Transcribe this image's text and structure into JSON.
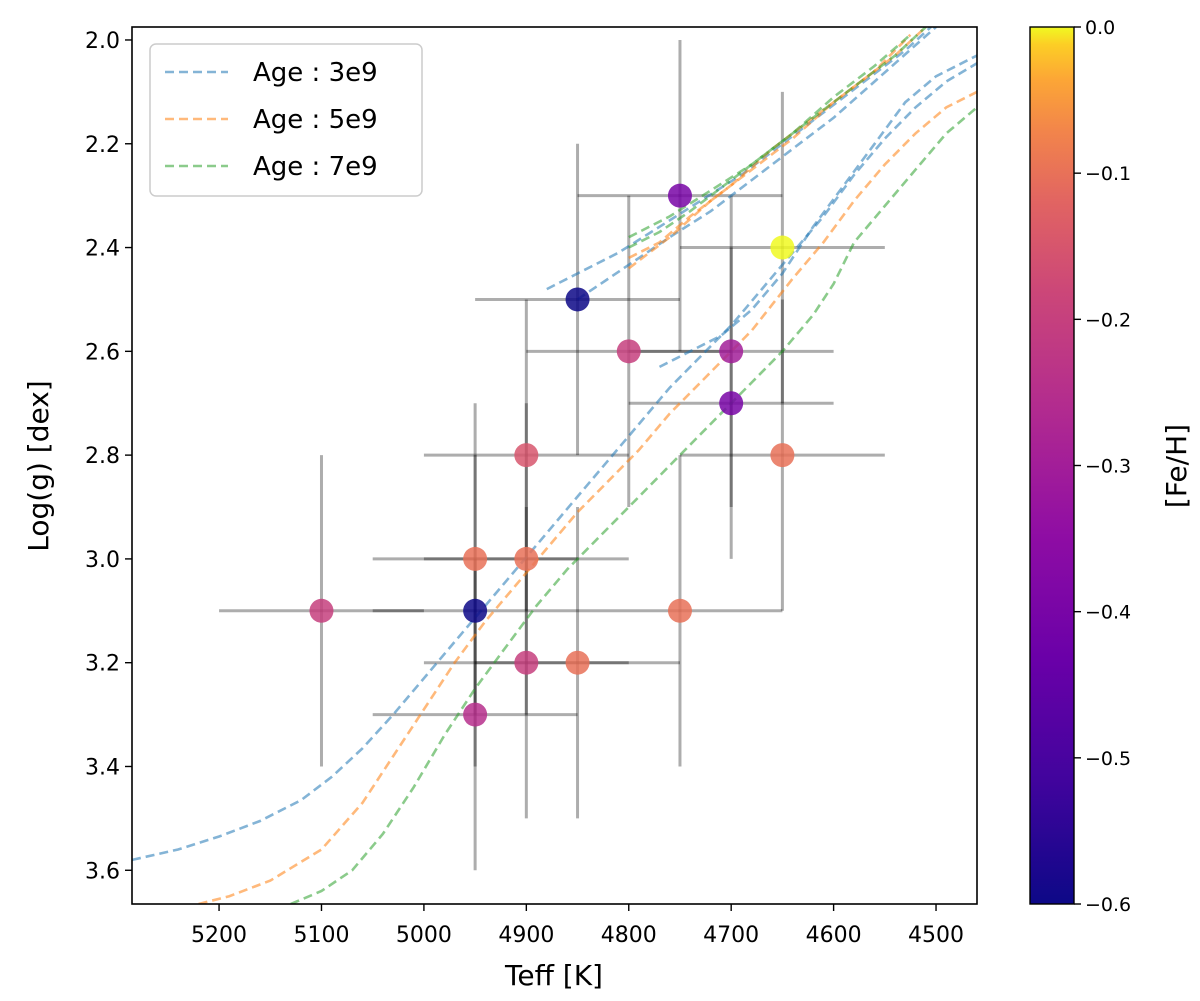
{
  "chart_data": {
    "type": "scatter",
    "xlabel": "Teff [K]",
    "ylabel": "Log(g) [dex]",
    "xlim": [
      5285,
      4460
    ],
    "ylim": [
      3.665,
      1.975
    ],
    "x_ticks": [
      5200,
      5100,
      5000,
      4900,
      4800,
      4700,
      4600,
      4500
    ],
    "y_ticks": [
      2.0,
      2.2,
      2.4,
      2.6,
      2.8,
      3.0,
      3.2,
      3.4,
      3.6
    ],
    "x_tick_labels": [
      "5200",
      "5100",
      "5000",
      "4900",
      "4800",
      "4700",
      "4600",
      "4500"
    ],
    "y_tick_labels": [
      "2.0",
      "2.2",
      "2.4",
      "2.6",
      "2.8",
      "3.0",
      "3.2",
      "3.4",
      "3.6"
    ],
    "colorbar": {
      "label": "[Fe/H]",
      "range": [
        -0.6,
        0.0
      ],
      "ticks": [
        0.0,
        -0.1,
        -0.2,
        -0.3,
        -0.4,
        -0.5,
        -0.6
      ],
      "tick_labels": [
        "0.0",
        "−0.1",
        "−0.2",
        "−0.3",
        "−0.4",
        "−0.5",
        "−0.6"
      ],
      "colormap": "plasma"
    },
    "points": [
      {
        "teff": 4750,
        "logg": 2.3,
        "feh": -0.4,
        "teff_err": 100,
        "logg_err": 0.3
      },
      {
        "teff": 4650,
        "logg": 2.4,
        "feh": 0.0,
        "teff_err": 100,
        "logg_err": 0.3
      },
      {
        "teff": 4850,
        "logg": 2.5,
        "feh": -0.6,
        "teff_err": 100,
        "logg_err": 0.3
      },
      {
        "teff": 4800,
        "logg": 2.6,
        "feh": -0.2,
        "teff_err": 100,
        "logg_err": 0.3
      },
      {
        "teff": 4700,
        "logg": 2.6,
        "feh": -0.3,
        "teff_err": 100,
        "logg_err": 0.3
      },
      {
        "teff": 4700,
        "logg": 2.7,
        "feh": -0.4,
        "teff_err": 100,
        "logg_err": 0.3
      },
      {
        "teff": 4900,
        "logg": 2.8,
        "feh": -0.15,
        "teff_err": 100,
        "logg_err": 0.3
      },
      {
        "teff": 4650,
        "logg": 2.8,
        "feh": -0.1,
        "teff_err": 100,
        "logg_err": 0.3
      },
      {
        "teff": 4950,
        "logg": 3.0,
        "feh": -0.1,
        "teff_err": 100,
        "logg_err": 0.3
      },
      {
        "teff": 4900,
        "logg": 3.0,
        "feh": -0.1,
        "teff_err": 100,
        "logg_err": 0.3
      },
      {
        "teff": 5100,
        "logg": 3.1,
        "feh": -0.2,
        "teff_err": 100,
        "logg_err": 0.3
      },
      {
        "teff": 4950,
        "logg": 3.1,
        "feh": -0.6,
        "teff_err": 100,
        "logg_err": 0.3
      },
      {
        "teff": 4750,
        "logg": 3.1,
        "feh": -0.1,
        "teff_err": 100,
        "logg_err": 0.3
      },
      {
        "teff": 4900,
        "logg": 3.2,
        "feh": -0.2,
        "teff_err": 100,
        "logg_err": 0.3
      },
      {
        "teff": 4850,
        "logg": 3.2,
        "feh": -0.1,
        "teff_err": 100,
        "logg_err": 0.3
      },
      {
        "teff": 4950,
        "logg": 3.3,
        "feh": -0.25,
        "teff_err": 100,
        "logg_err": 0.3
      }
    ],
    "isochrones": [
      {
        "name": "Age : 3e9",
        "color": "#1f77b4",
        "segments": [
          [
            [
              5285,
              3.58
            ],
            [
              5240,
              3.56
            ],
            [
              5200,
              3.535
            ],
            [
              5160,
              3.505
            ],
            [
              5120,
              3.465
            ],
            [
              5090,
              3.42
            ],
            [
              5060,
              3.365
            ],
            [
              5030,
              3.3
            ],
            [
              5000,
              3.23
            ],
            [
              4970,
              3.16
            ],
            [
              4940,
              3.09
            ],
            [
              4910,
              3.02
            ],
            [
              4880,
              2.95
            ],
            [
              4850,
              2.88
            ],
            [
              4820,
              2.81
            ],
            [
              4790,
              2.74
            ],
            [
              4760,
              2.67
            ],
            [
              4730,
              2.61
            ],
            [
              4700,
              2.55
            ],
            [
              4670,
              2.48
            ],
            [
              4640,
              2.41
            ],
            [
              4610,
              2.34
            ],
            [
              4580,
              2.26
            ],
            [
              4550,
              2.19
            ],
            [
              4520,
              2.13
            ],
            [
              4490,
              2.08
            ],
            [
              4460,
              2.045
            ]
          ],
          [
            [
              4770,
              2.63
            ],
            [
              4740,
              2.6
            ],
            [
              4710,
              2.57
            ],
            [
              4680,
              2.52
            ],
            [
              4650,
              2.45
            ],
            [
              4620,
              2.36
            ],
            [
              4590,
              2.28
            ],
            [
              4560,
              2.2
            ],
            [
              4530,
              2.12
            ],
            [
              4500,
              2.07
            ],
            [
              4460,
              2.03
            ]
          ],
          [
            [
              4880,
              2.48
            ],
            [
              4850,
              2.45
            ],
            [
              4810,
              2.41
            ],
            [
              4770,
              2.36
            ],
            [
              4730,
              2.31
            ],
            [
              4690,
              2.26
            ],
            [
              4650,
              2.2
            ],
            [
              4610,
              2.14
            ],
            [
              4570,
              2.08
            ],
            [
              4530,
              2.02
            ],
            [
              4505,
              1.975
            ]
          ],
          [
            [
              4850,
              2.5
            ],
            [
              4820,
              2.46
            ],
            [
              4790,
              2.42
            ],
            [
              4760,
              2.38
            ],
            [
              4720,
              2.33
            ],
            [
              4680,
              2.27
            ],
            [
              4640,
              2.21
            ],
            [
              4600,
              2.15
            ],
            [
              4560,
              2.08
            ],
            [
              4520,
              2.01
            ],
            [
              4500,
              1.975
            ]
          ]
        ]
      },
      {
        "name": "Age : 5e9",
        "color": "#ff7f0e",
        "segments": [
          [
            [
              5220,
              3.665
            ],
            [
              5190,
              3.65
            ],
            [
              5150,
              3.62
            ],
            [
              5100,
              3.56
            ],
            [
              5060,
              3.47
            ],
            [
              5030,
              3.38
            ],
            [
              5000,
              3.29
            ],
            [
              4970,
              3.2
            ],
            [
              4940,
              3.12
            ],
            [
              4910,
              3.05
            ],
            [
              4880,
              2.98
            ],
            [
              4850,
              2.91
            ],
            [
              4820,
              2.85
            ],
            [
              4790,
              2.79
            ],
            [
              4760,
              2.72
            ],
            [
              4730,
              2.66
            ],
            [
              4700,
              2.6
            ],
            [
              4680,
              2.56
            ],
            [
              4660,
              2.51
            ],
            [
              4640,
              2.46
            ],
            [
              4610,
              2.39
            ],
            [
              4580,
              2.31
            ],
            [
              4550,
              2.24
            ],
            [
              4520,
              2.18
            ],
            [
              4490,
              2.13
            ],
            [
              4460,
              2.1
            ]
          ],
          [
            [
              4800,
              2.42
            ],
            [
              4770,
              2.39
            ],
            [
              4740,
              2.34
            ],
            [
              4700,
              2.28
            ],
            [
              4660,
              2.21
            ],
            [
              4620,
              2.15
            ],
            [
              4580,
              2.09
            ],
            [
              4540,
              2.03
            ],
            [
              4510,
              1.975
            ]
          ],
          [
            [
              4800,
              2.44
            ],
            [
              4760,
              2.38
            ],
            [
              4720,
              2.31
            ],
            [
              4680,
              2.25
            ],
            [
              4640,
              2.19
            ],
            [
              4600,
              2.12
            ],
            [
              4560,
              2.06
            ],
            [
              4525,
              1.99
            ]
          ]
        ]
      },
      {
        "name": "Age : 7e9",
        "color": "#2ca02c",
        "segments": [
          [
            [
              5130,
              3.665
            ],
            [
              5100,
              3.64
            ],
            [
              5070,
              3.6
            ],
            [
              5040,
              3.53
            ],
            [
              5010,
              3.44
            ],
            [
              4980,
              3.34
            ],
            [
              4950,
              3.25
            ],
            [
              4920,
              3.17
            ],
            [
              4890,
              3.09
            ],
            [
              4860,
              3.02
            ],
            [
              4830,
              2.96
            ],
            [
              4800,
              2.9
            ],
            [
              4770,
              2.84
            ],
            [
              4740,
              2.78
            ],
            [
              4710,
              2.72
            ],
            [
              4680,
              2.66
            ],
            [
              4650,
              2.6
            ],
            [
              4620,
              2.53
            ],
            [
              4600,
              2.47
            ],
            [
              4580,
              2.39
            ],
            [
              4550,
              2.32
            ],
            [
              4520,
              2.25
            ],
            [
              4490,
              2.18
            ],
            [
              4460,
              2.13
            ]
          ],
          [
            [
              4800,
              2.4
            ],
            [
              4770,
              2.37
            ],
            [
              4740,
              2.33
            ],
            [
              4700,
              2.27
            ],
            [
              4660,
              2.21
            ],
            [
              4620,
              2.15
            ],
            [
              4580,
              2.09
            ],
            [
              4540,
              2.03
            ],
            [
              4510,
              1.975
            ]
          ],
          [
            [
              4800,
              2.38
            ],
            [
              4760,
              2.34
            ],
            [
              4720,
              2.29
            ],
            [
              4680,
              2.24
            ],
            [
              4640,
              2.18
            ],
            [
              4600,
              2.11
            ],
            [
              4560,
              2.05
            ],
            [
              4525,
              1.99
            ]
          ]
        ]
      }
    ]
  }
}
